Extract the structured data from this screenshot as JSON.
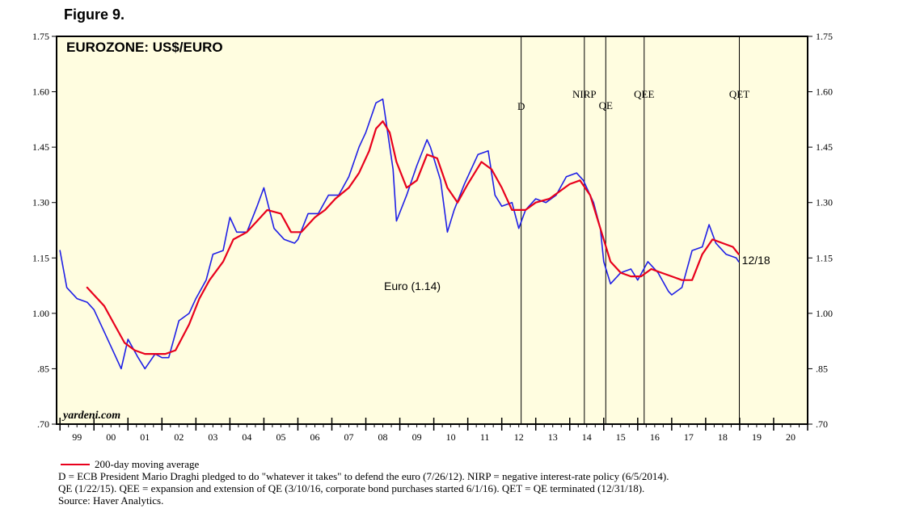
{
  "figure_label": "Figure 9.",
  "chart_data": {
    "type": "line",
    "title": "EUROZONE: US$/EURO",
    "xlabel": "",
    "ylabel": "",
    "x_ticks": [
      "99",
      "00",
      "01",
      "02",
      "03",
      "04",
      "05",
      "06",
      "07",
      "08",
      "09",
      "10",
      "11",
      "12",
      "13",
      "14",
      "15",
      "16",
      "17",
      "18",
      "19",
      "20"
    ],
    "xlim": [
      1998.9,
      2021.0
    ],
    "y_ticks": [
      "1.75",
      "1.60",
      "1.45",
      "1.30",
      "1.15",
      "1.00",
      ".85",
      ".70"
    ],
    "ylim": [
      0.7,
      1.75
    ],
    "grid": false,
    "background": "#fffde0",
    "series": [
      {
        "name": "Euro (1.14)",
        "color": "#1f1fe6",
        "x": [
          1999.0,
          1999.2,
          1999.5,
          1999.8,
          2000.0,
          2000.3,
          2000.6,
          2000.8,
          2001.0,
          2001.3,
          2001.5,
          2001.8,
          2002.0,
          2002.2,
          2002.5,
          2002.8,
          2003.0,
          2003.3,
          2003.5,
          2003.8,
          2004.0,
          2004.2,
          2004.5,
          2004.8,
          2005.0,
          2005.3,
          2005.6,
          2005.9,
          2006.0,
          2006.3,
          2006.6,
          2006.9,
          2007.2,
          2007.5,
          2007.8,
          2008.0,
          2008.3,
          2008.5,
          2008.8,
          2008.9,
          2009.2,
          2009.5,
          2009.8,
          2009.9,
          2010.2,
          2010.4,
          2010.6,
          2010.9,
          2011.3,
          2011.6,
          2011.8,
          2012.0,
          2012.3,
          2012.5,
          2012.7,
          2013.0,
          2013.3,
          2013.6,
          2013.9,
          2014.2,
          2014.4,
          2014.7,
          2014.9,
          2015.0,
          2015.2,
          2015.5,
          2015.8,
          2016.0,
          2016.3,
          2016.6,
          2016.9,
          2017.0,
          2017.3,
          2017.6,
          2017.9,
          2018.1,
          2018.3,
          2018.6,
          2018.9,
          2018.97
        ],
        "values": [
          1.17,
          1.07,
          1.04,
          1.03,
          1.01,
          0.95,
          0.89,
          0.85,
          0.93,
          0.88,
          0.85,
          0.89,
          0.88,
          0.88,
          0.98,
          1.0,
          1.04,
          1.09,
          1.16,
          1.17,
          1.26,
          1.22,
          1.22,
          1.29,
          1.34,
          1.23,
          1.2,
          1.19,
          1.2,
          1.27,
          1.27,
          1.32,
          1.32,
          1.37,
          1.45,
          1.49,
          1.57,
          1.58,
          1.39,
          1.25,
          1.32,
          1.4,
          1.47,
          1.45,
          1.36,
          1.22,
          1.28,
          1.35,
          1.43,
          1.44,
          1.32,
          1.29,
          1.3,
          1.23,
          1.28,
          1.31,
          1.3,
          1.32,
          1.37,
          1.38,
          1.36,
          1.3,
          1.23,
          1.14,
          1.08,
          1.11,
          1.12,
          1.09,
          1.14,
          1.11,
          1.06,
          1.05,
          1.07,
          1.17,
          1.18,
          1.24,
          1.19,
          1.16,
          1.15,
          1.14
        ],
        "end_label": "12/18"
      },
      {
        "name": "200-day moving average",
        "color": "#e8001c",
        "x": [
          1999.8,
          2000.0,
          2000.3,
          2000.6,
          2000.9,
          2001.2,
          2001.5,
          2001.8,
          2002.1,
          2002.4,
          2002.8,
          2003.1,
          2003.4,
          2003.8,
          2004.1,
          2004.5,
          2004.8,
          2005.1,
          2005.5,
          2005.8,
          2006.1,
          2006.5,
          2006.8,
          2007.1,
          2007.5,
          2007.8,
          2008.1,
          2008.3,
          2008.5,
          2008.7,
          2008.9,
          2009.2,
          2009.5,
          2009.8,
          2010.1,
          2010.4,
          2010.7,
          2011.0,
          2011.4,
          2011.7,
          2012.0,
          2012.3,
          2012.7,
          2013.0,
          2013.4,
          2013.7,
          2014.0,
          2014.3,
          2014.6,
          2014.9,
          2015.2,
          2015.5,
          2015.8,
          2016.1,
          2016.4,
          2016.7,
          2017.0,
          2017.3,
          2017.6,
          2017.9,
          2018.2,
          2018.5,
          2018.8,
          2018.97
        ],
        "values": [
          1.07,
          1.05,
          1.02,
          0.97,
          0.92,
          0.9,
          0.89,
          0.89,
          0.89,
          0.9,
          0.97,
          1.04,
          1.09,
          1.14,
          1.2,
          1.22,
          1.25,
          1.28,
          1.27,
          1.22,
          1.22,
          1.26,
          1.28,
          1.31,
          1.34,
          1.38,
          1.44,
          1.5,
          1.52,
          1.49,
          1.41,
          1.34,
          1.36,
          1.43,
          1.42,
          1.34,
          1.3,
          1.35,
          1.41,
          1.39,
          1.34,
          1.28,
          1.28,
          1.3,
          1.31,
          1.33,
          1.35,
          1.36,
          1.32,
          1.23,
          1.14,
          1.11,
          1.1,
          1.1,
          1.12,
          1.11,
          1.1,
          1.09,
          1.09,
          1.16,
          1.2,
          1.19,
          1.18,
          1.16
        ]
      }
    ],
    "annotations": [
      {
        "label": "D",
        "x": 2012.57
      },
      {
        "label": "NIRP",
        "x": 2014.43
      },
      {
        "label": "QE",
        "x": 2015.06
      },
      {
        "label": "QEE",
        "x": 2016.19
      },
      {
        "label": "QET",
        "x": 2018.99
      }
    ],
    "watermark": "yardeni.com",
    "series_label": "Euro (1.14)"
  },
  "legend_text": "200-day moving average",
  "footnotes": [
    "D = ECB President Mario Draghi pledged to do \"whatever it takes\" to defend the euro (7/26/12). NIRP = negative interest-rate policy (6/5/2014).",
    "QE (1/22/15). QEE = expansion and extension of QE (3/10/16, corporate bond purchases started 6/1/16). QET = QE terminated (12/31/18).",
    "Source: Haver Analytics."
  ]
}
